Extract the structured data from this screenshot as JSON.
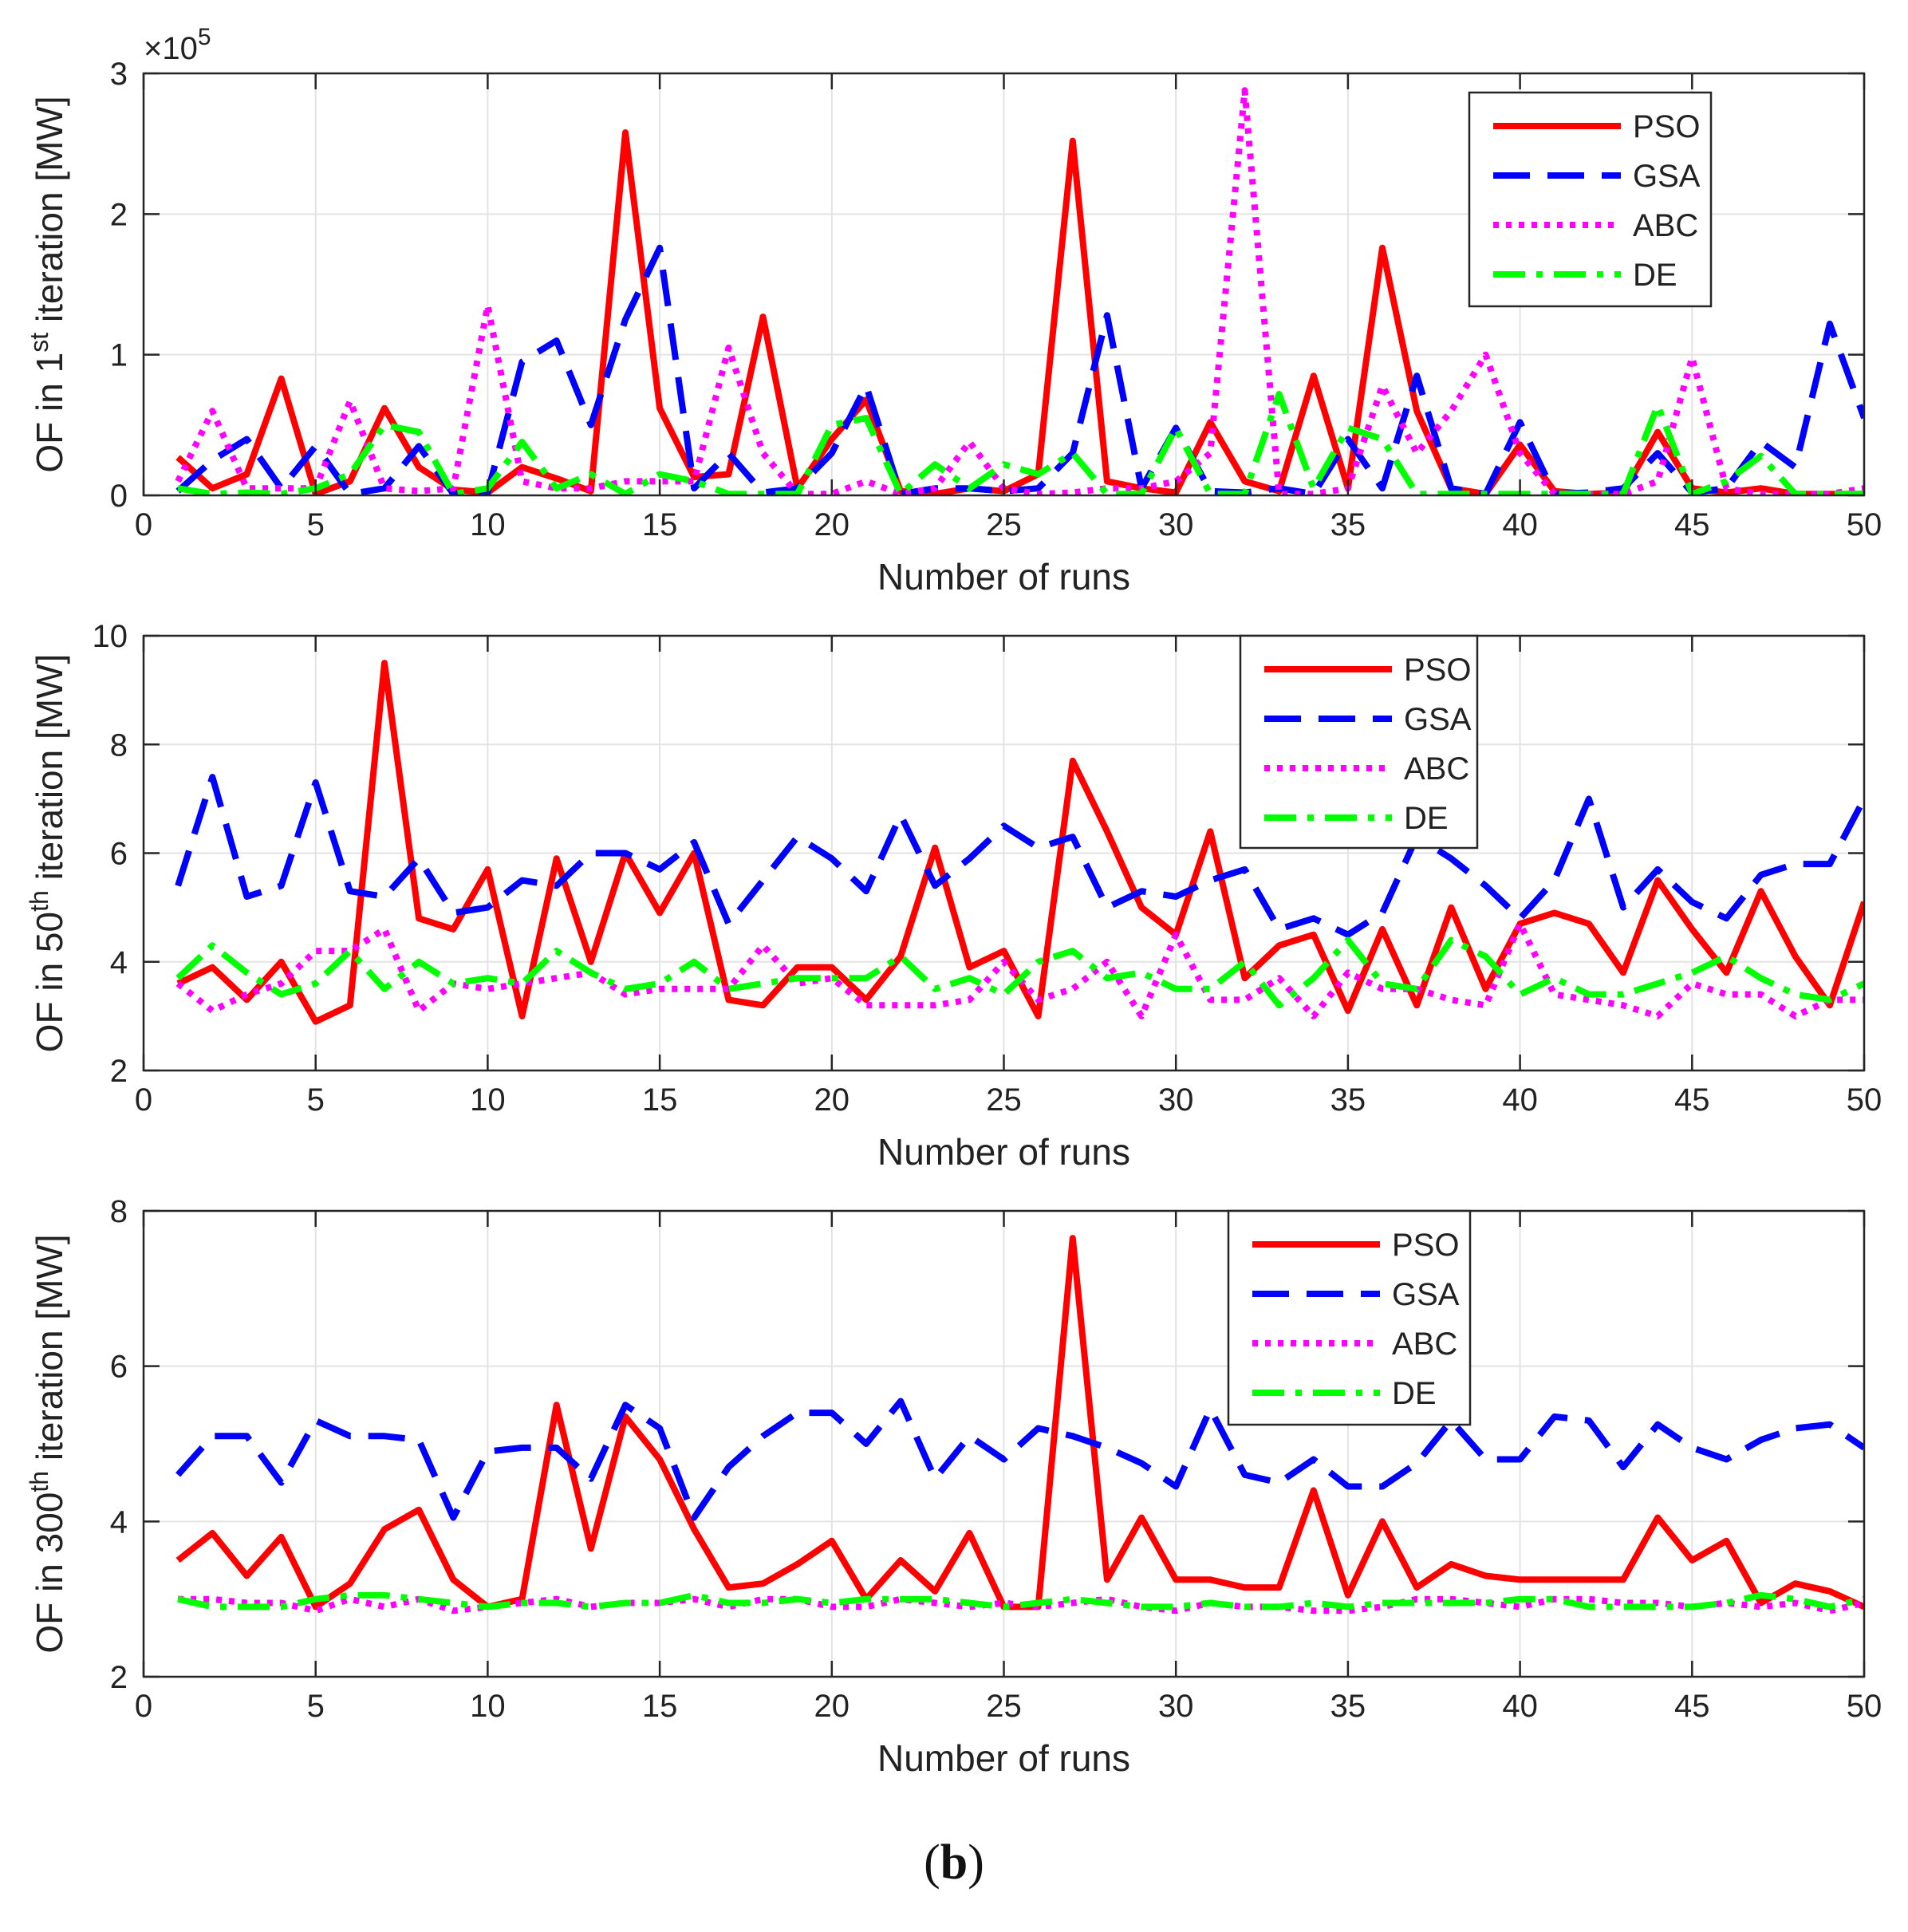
{
  "caption": {
    "open": "(",
    "letter": "b",
    "close": ")"
  },
  "chart_data": [
    {
      "type": "line",
      "title": "",
      "xlabel": "Number of runs",
      "ylabel": {
        "pre": "OF in 1",
        "sup": "st",
        "post": " iteration [MW]"
      },
      "y_exponent": {
        "base": "×10",
        "power": "5"
      },
      "xlim": [
        0,
        50
      ],
      "ylim": [
        0,
        3
      ],
      "xticks": [
        0,
        5,
        10,
        15,
        20,
        25,
        30,
        35,
        40,
        45,
        50
      ],
      "yticks": [
        0,
        1,
        2,
        3
      ],
      "grid": true,
      "legend_position": "top-right",
      "x": [
        1,
        2,
        3,
        4,
        5,
        6,
        7,
        8,
        9,
        10,
        11,
        12,
        13,
        14,
        15,
        16,
        17,
        18,
        19,
        20,
        21,
        22,
        23,
        24,
        25,
        26,
        27,
        28,
        29,
        30,
        31,
        32,
        33,
        34,
        35,
        36,
        37,
        38,
        39,
        40,
        41,
        42,
        43,
        44,
        45,
        46,
        47,
        48,
        49,
        50
      ],
      "series": [
        {
          "name": "PSO",
          "color": "#ff0000",
          "style": "solid",
          "values": [
            0.27,
            0.05,
            0.15,
            0.83,
            0.01,
            0.1,
            0.62,
            0.2,
            0.04,
            0.02,
            0.2,
            0.12,
            0.03,
            2.58,
            0.62,
            0.13,
            0.15,
            1.27,
            0.05,
            0.4,
            0.68,
            0.03,
            0.01,
            0.05,
            0.03,
            0.15,
            2.52,
            0.1,
            0.05,
            0.02,
            0.52,
            0.1,
            0.03,
            0.85,
            0.05,
            1.76,
            0.6,
            0.05,
            0.01,
            0.36,
            0.03,
            0.01,
            0.02,
            0.45,
            0.05,
            0.02,
            0.05,
            0.01,
            0.01,
            0.01
          ]
        },
        {
          "name": "GSA",
          "color": "#0000ff",
          "style": "dashed",
          "values": [
            0.03,
            0.25,
            0.4,
            0.05,
            0.35,
            0.01,
            0.05,
            0.35,
            0.01,
            0.02,
            0.95,
            1.1,
            0.5,
            1.25,
            1.76,
            0.05,
            0.3,
            0.02,
            0.05,
            0.3,
            0.78,
            0.01,
            0.05,
            0.05,
            0.03,
            0.05,
            0.3,
            1.28,
            0.05,
            0.48,
            0.03,
            0.02,
            0.05,
            0.01,
            0.4,
            0.05,
            0.85,
            0.05,
            0.01,
            0.52,
            0.01,
            0.02,
            0.05,
            0.3,
            0.02,
            0.05,
            0.38,
            0.2,
            1.22,
            0.55
          ]
        },
        {
          "name": "ABC",
          "color": "#ff00ff",
          "style": "dotted",
          "values": [
            0.1,
            0.6,
            0.05,
            0.05,
            0.05,
            0.67,
            0.05,
            0.03,
            0.05,
            1.35,
            0.1,
            0.05,
            0.05,
            0.1,
            0.1,
            0.1,
            1.05,
            0.3,
            0.01,
            0.01,
            0.1,
            0.01,
            0.05,
            0.38,
            0.05,
            0.01,
            0.02,
            0.05,
            0.05,
            0.1,
            0.3,
            2.88,
            0.01,
            0.01,
            0.05,
            0.78,
            0.3,
            0.6,
            1.0,
            0.3,
            0.01,
            0.01,
            0.01,
            0.1,
            0.98,
            0.05,
            0.01,
            0.01,
            0.01,
            0.05
          ]
        },
        {
          "name": "DE",
          "color": "#00ff00",
          "style": "dashdot",
          "values": [
            0.05,
            0.01,
            0.02,
            0.01,
            0.05,
            0.15,
            0.5,
            0.45,
            0.01,
            0.05,
            0.38,
            0.05,
            0.15,
            0.01,
            0.15,
            0.1,
            0.01,
            0.01,
            0.01,
            0.5,
            0.55,
            0.01,
            0.22,
            0.05,
            0.22,
            0.15,
            0.3,
            0.01,
            0.01,
            0.48,
            0.01,
            0.01,
            0.72,
            0.05,
            0.48,
            0.4,
            0.01,
            0.01,
            0.01,
            0.01,
            0.01,
            0.01,
            0.01,
            0.64,
            0.01,
            0.1,
            0.28,
            0.01,
            0.01,
            0.01
          ]
        }
      ]
    },
    {
      "type": "line",
      "title": "",
      "xlabel": "Number of runs",
      "ylabel": {
        "pre": "OF in 50",
        "sup": "th",
        "post": " iteration [MW]"
      },
      "xlim": [
        0,
        50
      ],
      "ylim": [
        2,
        10
      ],
      "xticks": [
        0,
        5,
        10,
        15,
        20,
        25,
        30,
        35,
        40,
        45,
        50
      ],
      "yticks": [
        2,
        4,
        6,
        8,
        10
      ],
      "grid": true,
      "legend_position": "top-center-right",
      "x": [
        1,
        2,
        3,
        4,
        5,
        6,
        7,
        8,
        9,
        10,
        11,
        12,
        13,
        14,
        15,
        16,
        17,
        18,
        19,
        20,
        21,
        22,
        23,
        24,
        25,
        26,
        27,
        28,
        29,
        30,
        31,
        32,
        33,
        34,
        35,
        36,
        37,
        38,
        39,
        40,
        41,
        42,
        43,
        44,
        45,
        46,
        47,
        48,
        49,
        50
      ],
      "series": [
        {
          "name": "PSO",
          "color": "#ff0000",
          "style": "solid",
          "values": [
            3.6,
            3.9,
            3.3,
            4.0,
            2.9,
            3.2,
            9.5,
            4.8,
            4.6,
            5.7,
            3.0,
            5.9,
            4.0,
            6.0,
            4.9,
            6.0,
            3.3,
            3.2,
            3.9,
            3.9,
            3.3,
            4.1,
            6.1,
            3.9,
            4.2,
            3.0,
            7.7,
            6.4,
            5.0,
            4.5,
            6.4,
            3.7,
            4.3,
            4.5,
            3.1,
            4.6,
            3.2,
            5.0,
            3.5,
            4.7,
            4.9,
            4.7,
            3.8,
            5.5,
            4.6,
            3.8,
            5.3,
            4.1,
            3.2,
            5.1
          ]
        },
        {
          "name": "GSA",
          "color": "#0000ff",
          "style": "dashed",
          "values": [
            5.4,
            7.4,
            5.2,
            5.4,
            7.3,
            5.3,
            5.2,
            5.9,
            4.9,
            5.0,
            5.5,
            5.4,
            6.0,
            6.0,
            5.7,
            6.2,
            4.7,
            5.5,
            6.3,
            5.9,
            5.3,
            6.7,
            5.4,
            5.9,
            6.5,
            6.1,
            6.3,
            5.0,
            5.3,
            5.2,
            5.5,
            5.7,
            4.6,
            4.8,
            4.5,
            4.9,
            6.3,
            5.9,
            5.4,
            4.8,
            5.5,
            7.0,
            5.0,
            5.7,
            5.1,
            4.8,
            5.6,
            5.8,
            5.8,
            7.0
          ]
        },
        {
          "name": "ABC",
          "color": "#ff00ff",
          "style": "dotted",
          "values": [
            3.6,
            3.1,
            3.4,
            3.6,
            4.2,
            4.2,
            4.6,
            3.1,
            3.6,
            3.5,
            3.6,
            3.7,
            3.8,
            3.4,
            3.5,
            3.5,
            3.5,
            4.3,
            3.6,
            3.7,
            3.2,
            3.2,
            3.2,
            3.3,
            4.0,
            3.3,
            3.5,
            4.0,
            3.0,
            4.5,
            3.3,
            3.3,
            3.7,
            3.0,
            3.8,
            3.5,
            3.5,
            3.3,
            3.2,
            4.7,
            3.4,
            3.3,
            3.2,
            3.0,
            3.6,
            3.4,
            3.4,
            3.0,
            3.3,
            3.3
          ]
        },
        {
          "name": "DE",
          "color": "#00ff00",
          "style": "dashdot",
          "values": [
            3.7,
            4.3,
            3.8,
            3.4,
            3.6,
            4.2,
            3.5,
            4.0,
            3.6,
            3.7,
            3.6,
            4.2,
            3.8,
            3.5,
            3.6,
            4.0,
            3.5,
            3.6,
            3.7,
            3.7,
            3.7,
            4.1,
            3.5,
            3.7,
            3.4,
            4.0,
            4.2,
            3.7,
            3.8,
            3.5,
            3.5,
            4.0,
            3.2,
            3.7,
            4.4,
            3.6,
            3.5,
            4.4,
            4.1,
            3.4,
            3.7,
            3.4,
            3.4,
            3.6,
            3.8,
            4.1,
            3.7,
            3.4,
            3.3,
            3.6
          ]
        }
      ]
    },
    {
      "type": "line",
      "title": "",
      "xlabel": "Number of runs",
      "ylabel": {
        "pre": "OF in 300",
        "sup": "th",
        "post": " iteration [MW]"
      },
      "xlim": [
        0,
        50
      ],
      "ylim": [
        2,
        8
      ],
      "xticks": [
        0,
        5,
        10,
        15,
        20,
        25,
        30,
        35,
        40,
        45,
        50
      ],
      "yticks": [
        2,
        4,
        6,
        8
      ],
      "grid": true,
      "legend_position": "top-center-right",
      "x": [
        1,
        2,
        3,
        4,
        5,
        6,
        7,
        8,
        9,
        10,
        11,
        12,
        13,
        14,
        15,
        16,
        17,
        18,
        19,
        20,
        21,
        22,
        23,
        24,
        25,
        26,
        27,
        28,
        29,
        30,
        31,
        32,
        33,
        34,
        35,
        36,
        37,
        38,
        39,
        40,
        41,
        42,
        43,
        44,
        45,
        46,
        47,
        48,
        49,
        50
      ],
      "series": [
        {
          "name": "PSO",
          "color": "#ff0000",
          "style": "solid",
          "values": [
            3.5,
            3.85,
            3.3,
            3.8,
            2.9,
            3.2,
            3.9,
            4.15,
            3.25,
            2.9,
            3.0,
            5.5,
            3.65,
            5.35,
            4.8,
            3.9,
            3.15,
            3.2,
            3.45,
            3.75,
            3.0,
            3.5,
            3.1,
            3.85,
            2.9,
            2.9,
            7.65,
            3.25,
            4.05,
            3.25,
            3.25,
            3.15,
            3.15,
            4.4,
            3.05,
            4.0,
            3.15,
            3.45,
            3.3,
            3.25,
            3.25,
            3.25,
            3.25,
            4.05,
            3.5,
            3.75,
            2.95,
            3.2,
            3.1,
            2.9
          ]
        },
        {
          "name": "GSA",
          "color": "#0000ff",
          "style": "dashed",
          "values": [
            4.6,
            5.1,
            5.1,
            4.5,
            5.3,
            5.1,
            5.1,
            5.05,
            4.05,
            4.9,
            4.95,
            4.95,
            4.55,
            5.5,
            5.2,
            4.05,
            4.7,
            5.1,
            5.4,
            5.4,
            5.0,
            5.55,
            4.55,
            5.1,
            4.8,
            5.2,
            5.1,
            4.95,
            4.75,
            4.45,
            5.45,
            4.6,
            4.5,
            4.8,
            4.45,
            4.45,
            4.75,
            5.3,
            4.8,
            4.8,
            5.35,
            5.3,
            4.7,
            5.25,
            4.95,
            4.8,
            5.05,
            5.2,
            5.25,
            4.95
          ]
        },
        {
          "name": "ABC",
          "color": "#ff00ff",
          "style": "dotted",
          "values": [
            3.0,
            3.0,
            2.95,
            2.95,
            2.85,
            3.0,
            2.9,
            3.0,
            2.85,
            2.9,
            2.95,
            3.0,
            2.9,
            2.95,
            2.95,
            3.0,
            2.9,
            3.0,
            3.0,
            2.9,
            2.9,
            3.0,
            2.95,
            2.9,
            2.95,
            2.9,
            2.95,
            3.0,
            2.9,
            2.85,
            2.95,
            2.9,
            2.9,
            2.85,
            2.85,
            2.9,
            3.0,
            3.0,
            2.95,
            2.9,
            3.0,
            3.0,
            2.95,
            2.95,
            2.9,
            2.95,
            2.9,
            2.95,
            2.85,
            2.95
          ]
        },
        {
          "name": "DE",
          "color": "#00ff00",
          "style": "dashdot",
          "values": [
            3.0,
            2.9,
            2.9,
            2.9,
            3.0,
            3.05,
            3.05,
            3.0,
            2.95,
            2.9,
            2.95,
            2.95,
            2.9,
            2.95,
            2.95,
            3.05,
            2.95,
            2.95,
            3.0,
            2.95,
            3.0,
            3.0,
            3.0,
            2.95,
            2.9,
            2.95,
            3.0,
            2.95,
            2.9,
            2.9,
            2.95,
            2.9,
            2.9,
            2.95,
            2.9,
            2.95,
            2.95,
            2.95,
            2.95,
            3.0,
            3.0,
            2.9,
            2.9,
            2.9,
            2.9,
            2.95,
            3.05,
            3.0,
            2.9,
            3.0
          ]
        }
      ]
    }
  ]
}
